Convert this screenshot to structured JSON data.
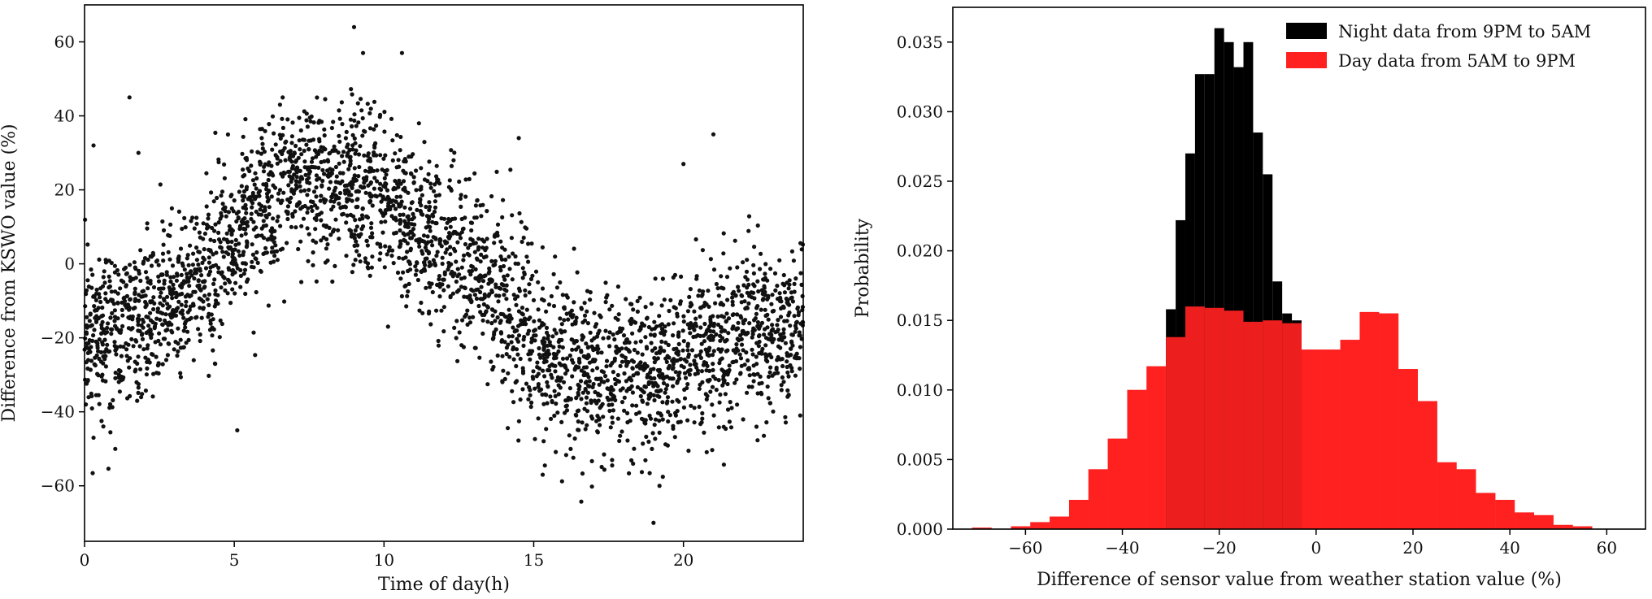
{
  "chart_data": [
    {
      "type": "scatter",
      "title": "",
      "xlabel": "Time of day(h)",
      "ylabel": "Difference from KSWO value (%)",
      "xlim": [
        0,
        24
      ],
      "ylim": [
        -75,
        70
      ],
      "xticks": [
        0,
        5,
        10,
        15,
        20
      ],
      "yticks": [
        -60,
        -40,
        -20,
        0,
        20,
        40,
        60
      ],
      "xtick_labels": [
        "0",
        "5",
        "10",
        "15",
        "20"
      ],
      "ytick_labels": [
        "−60",
        "−40",
        "−20",
        "0",
        "20",
        "40",
        "60"
      ],
      "point_color": "#111111",
      "trend": {
        "hours": [
          0,
          1,
          2,
          3,
          4,
          5,
          6,
          7,
          8,
          9,
          10,
          11,
          12,
          13,
          14,
          15,
          16,
          17,
          18,
          19,
          20,
          21,
          22,
          23,
          24
        ],
        "mean": [
          -18,
          -19,
          -15,
          -10,
          -3,
          7,
          15,
          21,
          22,
          21,
          17,
          10,
          5,
          -2,
          -12,
          -20,
          -26,
          -29,
          -30,
          -30,
          -26,
          -21,
          -19,
          -18,
          -18
        ],
        "spread": 11,
        "points_per_hour": 140
      },
      "outliers": [
        {
          "x": 0.3,
          "y": 32
        },
        {
          "x": 1.5,
          "y": 45
        },
        {
          "x": 1.8,
          "y": 30
        },
        {
          "x": 9.0,
          "y": 64
        },
        {
          "x": 9.3,
          "y": 57
        },
        {
          "x": 10.6,
          "y": 57
        },
        {
          "x": 21.0,
          "y": 35
        },
        {
          "x": 20.0,
          "y": 27
        },
        {
          "x": 14.5,
          "y": 34
        },
        {
          "x": 19.0,
          "y": -70
        },
        {
          "x": 5.1,
          "y": -45
        },
        {
          "x": 0.3,
          "y": -47
        },
        {
          "x": 19.2,
          "y": -60
        },
        {
          "x": 15.3,
          "y": -57
        }
      ]
    },
    {
      "type": "bar",
      "title": "",
      "xlabel": "Difference of sensor value from weather station value (%)",
      "ylabel": "Probability",
      "xlim": [
        -75,
        68
      ],
      "ylim": [
        0,
        0.0375
      ],
      "xticks": [
        -60,
        -40,
        -20,
        0,
        20,
        40,
        60
      ],
      "yticks": [
        0,
        0.005,
        0.01,
        0.015,
        0.02,
        0.025,
        0.03,
        0.035
      ],
      "xtick_labels": [
        "−60",
        "−40",
        "−20",
        "0",
        "20",
        "40",
        "60"
      ],
      "ytick_labels": [
        "0.000",
        "0.005",
        "0.010",
        "0.015",
        "0.020",
        "0.025",
        "0.030",
        "0.035"
      ],
      "legend_position": "top-right",
      "series": [
        {
          "name": "Night data from 9PM to 5AM",
          "color": "#000000",
          "bins": [
            {
              "x0": -31,
              "x1": -29,
              "value": 0.0158
            },
            {
              "x0": -29,
              "x1": -27,
              "value": 0.0222
            },
            {
              "x0": -27,
              "x1": -25,
              "value": 0.027
            },
            {
              "x0": -25,
              "x1": -23,
              "value": 0.0327
            },
            {
              "x0": -23,
              "x1": -21,
              "value": 0.0327
            },
            {
              "x0": -21,
              "x1": -19,
              "value": 0.036
            },
            {
              "x0": -19,
              "x1": -17,
              "value": 0.035
            },
            {
              "x0": -17,
              "x1": -15,
              "value": 0.0332
            },
            {
              "x0": -15,
              "x1": -13,
              "value": 0.035
            },
            {
              "x0": -13,
              "x1": -11,
              "value": 0.0285
            },
            {
              "x0": -11,
              "x1": -9,
              "value": 0.0255
            },
            {
              "x0": -9,
              "x1": -7,
              "value": 0.0178
            },
            {
              "x0": -7,
              "x1": -5,
              "value": 0.0155
            },
            {
              "x0": -5,
              "x1": -3,
              "value": 0.015
            }
          ]
        },
        {
          "name": "Day data from 5AM to 9PM",
          "color": "#ff2020",
          "bins": [
            {
              "x0": -71,
              "x1": -67,
              "value": 0.0001
            },
            {
              "x0": -63,
              "x1": -59,
              "value": 0.0002
            },
            {
              "x0": -59,
              "x1": -55,
              "value": 0.0005
            },
            {
              "x0": -55,
              "x1": -51,
              "value": 0.0009
            },
            {
              "x0": -51,
              "x1": -47,
              "value": 0.0021
            },
            {
              "x0": -47,
              "x1": -43,
              "value": 0.0043
            },
            {
              "x0": -43,
              "x1": -39,
              "value": 0.0065
            },
            {
              "x0": -39,
              "x1": -35,
              "value": 0.01
            },
            {
              "x0": -35,
              "x1": -31,
              "value": 0.0117
            },
            {
              "x0": -31,
              "x1": -27,
              "value": 0.0138
            },
            {
              "x0": -27,
              "x1": -23,
              "value": 0.016
            },
            {
              "x0": -23,
              "x1": -19,
              "value": 0.0159
            },
            {
              "x0": -19,
              "x1": -15,
              "value": 0.0157
            },
            {
              "x0": -15,
              "x1": -11,
              "value": 0.0149
            },
            {
              "x0": -11,
              "x1": -7,
              "value": 0.015
            },
            {
              "x0": -7,
              "x1": -3,
              "value": 0.0148
            },
            {
              "x0": -3,
              "x1": 1,
              "value": 0.0129
            },
            {
              "x0": 1,
              "x1": 5,
              "value": 0.0129
            },
            {
              "x0": 5,
              "x1": 9,
              "value": 0.0136
            },
            {
              "x0": 9,
              "x1": 13,
              "value": 0.0156
            },
            {
              "x0": 13,
              "x1": 17,
              "value": 0.0155
            },
            {
              "x0": 17,
              "x1": 21,
              "value": 0.0115
            },
            {
              "x0": 21,
              "x1": 25,
              "value": 0.0092
            },
            {
              "x0": 25,
              "x1": 29,
              "value": 0.0048
            },
            {
              "x0": 29,
              "x1": 33,
              "value": 0.0043
            },
            {
              "x0": 33,
              "x1": 37,
              "value": 0.0026
            },
            {
              "x0": 37,
              "x1": 41,
              "value": 0.0021
            },
            {
              "x0": 41,
              "x1": 45,
              "value": 0.0012
            },
            {
              "x0": 45,
              "x1": 49,
              "value": 0.001
            },
            {
              "x0": 49,
              "x1": 53,
              "value": 0.0003
            },
            {
              "x0": 53,
              "x1": 57,
              "value": 0.0002
            }
          ]
        }
      ]
    }
  ]
}
